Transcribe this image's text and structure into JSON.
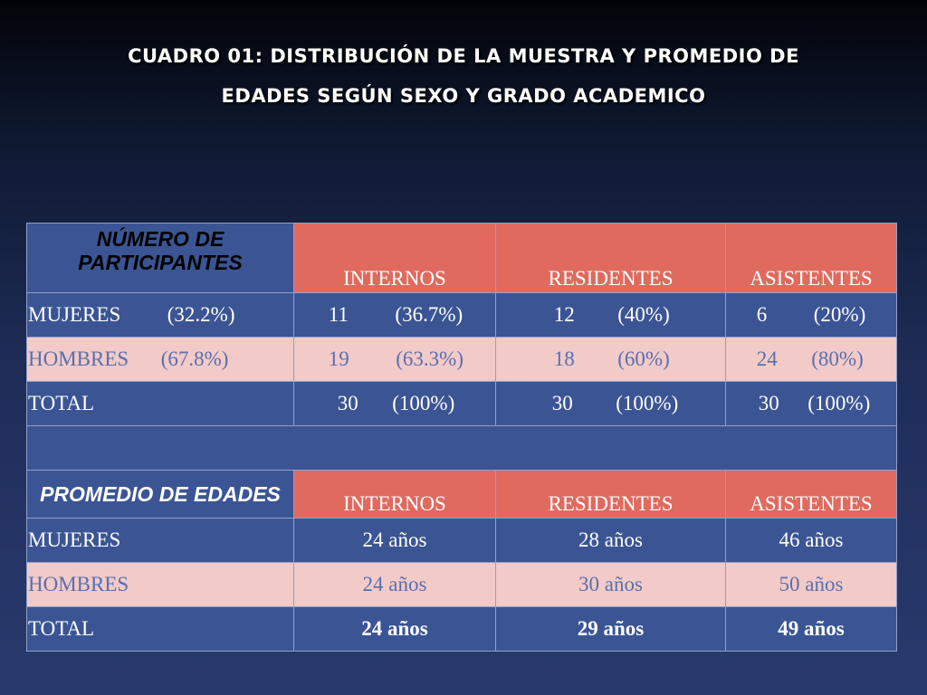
{
  "title": {
    "line1": "CUADRO 01:  DISTRIBUCIÓN DE LA MUESTRA Y PROMEDIO DE",
    "line2": "EDADES SEGÚN SEXO Y GRADO ACADEMICO"
  },
  "participants": {
    "header_line1": "NÚMERO DE",
    "header_line2": "PARTICIPANTES",
    "columns": [
      "INTERNOS",
      "RESIDENTES",
      "ASISTENTES"
    ],
    "rows": [
      {
        "label": "MUJERES",
        "label_pct": "(32.2%)",
        "cells": [
          {
            "n": "11",
            "pct": "(36.7%)"
          },
          {
            "n": "12",
            "pct": "(40%)"
          },
          {
            "n": "6",
            "pct": "(20%)"
          }
        ]
      },
      {
        "label": "HOMBRES",
        "label_pct": "(67.8%)",
        "cells": [
          {
            "n": "19",
            "pct": "(63.3%)"
          },
          {
            "n": "18",
            "pct": "(60%)"
          },
          {
            "n": "24",
            "pct": "(80%)"
          }
        ]
      },
      {
        "label": "TOTAL",
        "label_pct": "",
        "cells": [
          {
            "n": "30",
            "pct": "(100%)"
          },
          {
            "n": "30",
            "pct": "(100%)"
          },
          {
            "n": "30",
            "pct": "(100%)"
          }
        ]
      }
    ]
  },
  "ages": {
    "header": "PROMEDIO DE EDADES",
    "columns": [
      "INTERNOS",
      "RESIDENTES",
      "ASISTENTES"
    ],
    "rows": [
      {
        "label": "MUJERES",
        "cells": [
          "24 años",
          "28 años",
          "46 años"
        ]
      },
      {
        "label": "HOMBRES",
        "cells": [
          "24 años",
          "30 años",
          "50 años"
        ]
      },
      {
        "label": "TOTAL",
        "cells": [
          "24 años",
          "29 años",
          "49 años"
        ]
      }
    ]
  },
  "colors": {
    "background_top": "#030409",
    "background_bottom": "#28396b",
    "header_coral": "#e06a5e",
    "row_blue": "#3b5594",
    "row_pink": "#f2cac7",
    "pink_row_text": "#5a6fb0"
  }
}
